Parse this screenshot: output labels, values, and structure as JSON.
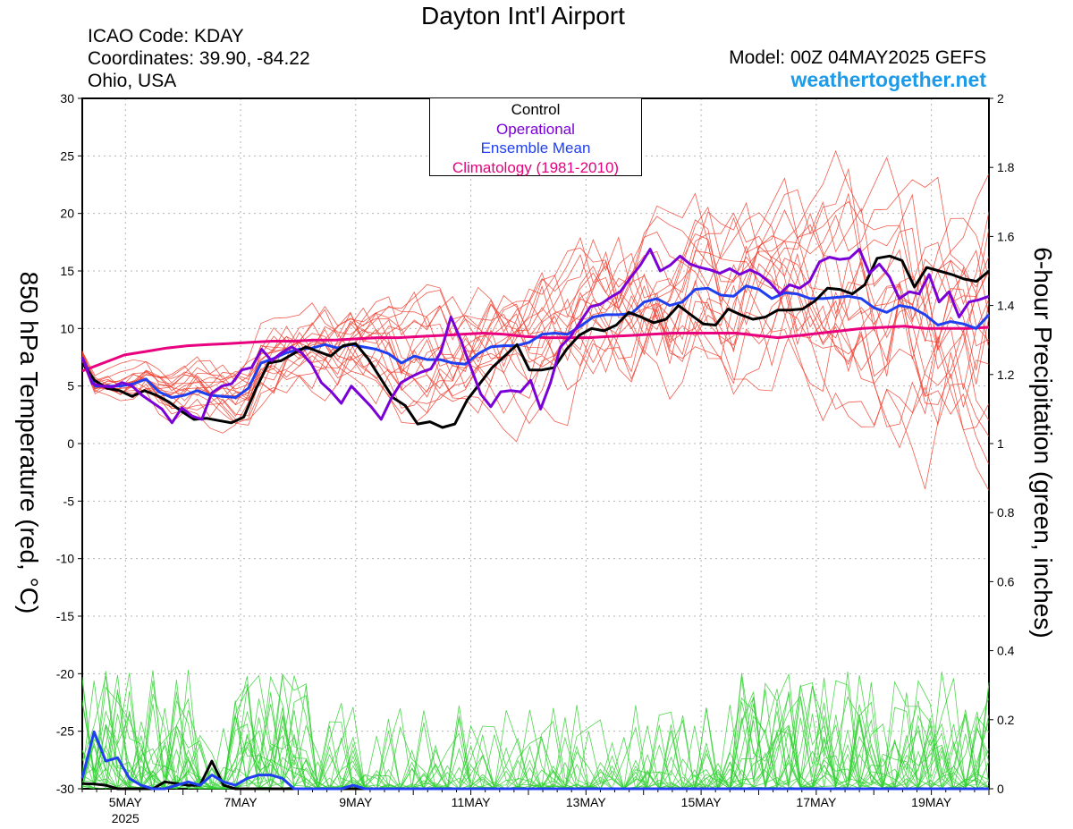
{
  "header": {
    "title": "Dayton Int'l Airport",
    "icao": "ICAO Code: KDAY",
    "coords": "Coordinates: 39.90, -84.22",
    "location": "Ohio, USA",
    "model": "Model: 00Z 04MAY2025 GEFS",
    "site": "weathertogether.net"
  },
  "chart_data": {
    "type": "line",
    "ylabel_left": "850 hPa Temperature (red, °C)",
    "ylabel_right": "6-hour Precipitation (green, inches)",
    "x_range_days": [
      "2025-05-04T06:00",
      "2025-05-20T00:00"
    ],
    "x_tick_labels": [
      "5MAY",
      "7MAY",
      "9MAY",
      "11MAY",
      "13MAY",
      "15MAY",
      "17MAY",
      "19MAY"
    ],
    "x_tick_dates": [
      "2025-05-05",
      "2025-05-07",
      "2025-05-09",
      "2025-05-11",
      "2025-05-13",
      "2025-05-15",
      "2025-05-17",
      "2025-05-19"
    ],
    "x_year_label": "2025",
    "ylim_left": [
      -30,
      30
    ],
    "yticks_left": [
      30,
      25,
      20,
      15,
      10,
      5,
      0,
      -5,
      -10,
      -15,
      -20,
      -25,
      -30
    ],
    "ylim_right": [
      0,
      2
    ],
    "yticks_right": [
      "2",
      "1.8",
      "1.6",
      "1.4",
      "1.2",
      "1",
      "0.8",
      "0.6",
      "0.4",
      "0.2",
      "0"
    ],
    "grid": true,
    "legend": {
      "placement": "top-center",
      "entries": [
        {
          "label": "Control",
          "color": "#000000"
        },
        {
          "label": "Operational",
          "color": "#7a00d8"
        },
        {
          "label": "Ensemble Mean",
          "color": "#1f3ff0"
        },
        {
          "label": "Climatology (1981-2010)",
          "color": "#e8007f"
        }
      ]
    },
    "time_step_hours": 6,
    "temperature_series": [
      {
        "name": "Control",
        "color": "#000000",
        "values": [
          7,
          5.5,
          4.8,
          4.6,
          4.1,
          4.6,
          4.2,
          3.6,
          2.8,
          2.1,
          2.2,
          2.0,
          1.8,
          2.3,
          4.8,
          7.0,
          7.2,
          7.8,
          8.4,
          8.0,
          7.6,
          8.5,
          8.7,
          7.4,
          5.7,
          4.0,
          3.3,
          1.7,
          1.9,
          1.4,
          1.7,
          3.8,
          5.2,
          6.6,
          7.6,
          8.6,
          6.4,
          6.4,
          6.6,
          8.2,
          9.4,
          10.0,
          9.8,
          10.3,
          11.4,
          11.0,
          10.5,
          10.8,
          12.0,
          11.2,
          10.4,
          10.3,
          11.7,
          11.2,
          10.8,
          11.0,
          11.6,
          11.6,
          11.7,
          12.4,
          13.5,
          13.4,
          13.0,
          13.8,
          16.1,
          16.3,
          15.9,
          13.6,
          15.3,
          15.0,
          14.7,
          14.3,
          14.1,
          15.0
        ]
      },
      {
        "name": "Operational",
        "color": "#7a00d8",
        "values": [
          7.5,
          5.2,
          5.0,
          4.9,
          5.3,
          5.0,
          4.2,
          3.6,
          3.0,
          1.8,
          3.1,
          2.4,
          2.1,
          4.4,
          5.0,
          5.2,
          6.4,
          6.6,
          8.2,
          7.2,
          7.9,
          8.4,
          7.9,
          6.9,
          5.3,
          4.5,
          3.5,
          5.0,
          4.1,
          3.2,
          2.1,
          3.9,
          5.3,
          5.8,
          6.2,
          6.5,
          8.0,
          11.0,
          9.0,
          6.6,
          4.3,
          3.2,
          4.5,
          4.6,
          4.5,
          5.5,
          3.0,
          5.3,
          8.4,
          9.3,
          10.6,
          11.9,
          12.1,
          12.7,
          13.2,
          14.4,
          15.5,
          16.9,
          15.0,
          15.5,
          16.3,
          15.6,
          15.3,
          15.1,
          14.8,
          15.2,
          14.7,
          15.1,
          14.7,
          14.0,
          13.0,
          13.8,
          13.5,
          14.1,
          15.8,
          16.2,
          16.0,
          16.1,
          16.9,
          14.8,
          15.6,
          14.5,
          12.6,
          13.2,
          13.0,
          14.7,
          12.3,
          13.2,
          11.0,
          12.3,
          12.5,
          12.8
        ]
      },
      {
        "name": "Ensemble Mean",
        "color": "#1f3ff0",
        "values": [
          7.5,
          5.0,
          5.0,
          5.0,
          5.2,
          5.6,
          4.5,
          4.0,
          4.2,
          4.6,
          4.2,
          4.1,
          4.0,
          4.8,
          7.0,
          7.4,
          7.9,
          8.2,
          8.3,
          8.6,
          8.3,
          8.6,
          8.4,
          8.2,
          7.8,
          7.0,
          7.6,
          7.3,
          7.3,
          7.0,
          6.9,
          7.8,
          8.4,
          8.5,
          8.5,
          8.8,
          9.5,
          9.6,
          9.5,
          10.2,
          11.0,
          11.2,
          11.2,
          11.3,
          12.3,
          12.6,
          12.0,
          12.3,
          13.4,
          13.5,
          12.9,
          12.8,
          13.7,
          13.4,
          12.6,
          13.1,
          13.0,
          12.6,
          12.6,
          12.7,
          12.8,
          12.6,
          11.8,
          11.4,
          12.0,
          11.8,
          11.2,
          10.3,
          10.6,
          10.4,
          10.0,
          11.2
        ]
      },
      {
        "name": "Climatology (1981-2010)",
        "color": "#e8007f",
        "values": [
          6.3,
          7.0,
          7.7,
          8.0,
          8.3,
          8.5,
          8.6,
          8.7,
          8.8,
          8.9,
          8.9,
          9.0,
          9.0,
          9.1,
          9.2,
          9.2,
          9.3,
          9.4,
          9.5,
          9.6,
          9.5,
          9.3,
          9.2,
          9.2,
          9.2,
          9.3,
          9.4,
          9.5,
          9.6,
          9.6,
          9.6,
          9.6,
          9.4,
          9.2,
          9.4,
          9.6,
          9.8,
          10.0,
          10.1,
          10.2,
          10.0,
          10.0,
          10.0,
          10.1
        ]
      }
    ],
    "precip_series": [
      {
        "name": "Control",
        "color": "#000000",
        "values": [
          0.015,
          0.014,
          0.01,
          0.0,
          0.0,
          0.0,
          0.0,
          0.02,
          0.015,
          0.01,
          0.01,
          0.08,
          0.01,
          0.0,
          0.0,
          0.0,
          0.0,
          0.0,
          0.0,
          0.0,
          0.0,
          0.0,
          0.0,
          0.0,
          0.0,
          0.0,
          0.0,
          0.0,
          0.0,
          0.0,
          0.0,
          0.0,
          0.0,
          0.0,
          0.0,
          0.0,
          0.0,
          0.0,
          0.0,
          0.0,
          0.0,
          0.0,
          0.0,
          0.0,
          0.0,
          0.0,
          0.0,
          0.0,
          0.0,
          0.0,
          0.0,
          0.0,
          0.0,
          0.0,
          0.0,
          0.0,
          0.0,
          0.0,
          0.0,
          0.0,
          0.0,
          0.0,
          0.0,
          0.0,
          0.0,
          0.0,
          0.0,
          0.0,
          0.0,
          0.0,
          0.0,
          0.0,
          0.0,
          0.0,
          0.0,
          0.0,
          0.0,
          0.0
        ]
      },
      {
        "name": "Ensemble Mean",
        "color": "#1f3ff0",
        "values": [
          0.03,
          0.165,
          0.08,
          0.09,
          0.03,
          0.01,
          0.0,
          0.0,
          0.01,
          0.02,
          0.01,
          0.04,
          0.02,
          0.01,
          0.03,
          0.04,
          0.04,
          0.03,
          0.0,
          0.0,
          0.0,
          0.0,
          0.0,
          0.01,
          0.0,
          0.0,
          0.0,
          0.0,
          0.0,
          0.0,
          0.0,
          0.0,
          0.0,
          0.0,
          0.0,
          0.0,
          0.0,
          0.0,
          0.0,
          0.0,
          0.0,
          0.0,
          0.0,
          0.0,
          0.0,
          0.0,
          0.0,
          0.0,
          0.0,
          0.0,
          0.0,
          0.0,
          0.0,
          0.0,
          0.0,
          0.0,
          0.0,
          0.0,
          0.0,
          0.0,
          0.0,
          0.0,
          0.0,
          0.0,
          0.0,
          0.0,
          0.0,
          0.0,
          0.0,
          0.0,
          0.0,
          0.0,
          0.0,
          0.0,
          0.0,
          0.0,
          0.0,
          0.0
        ]
      }
    ]
  }
}
